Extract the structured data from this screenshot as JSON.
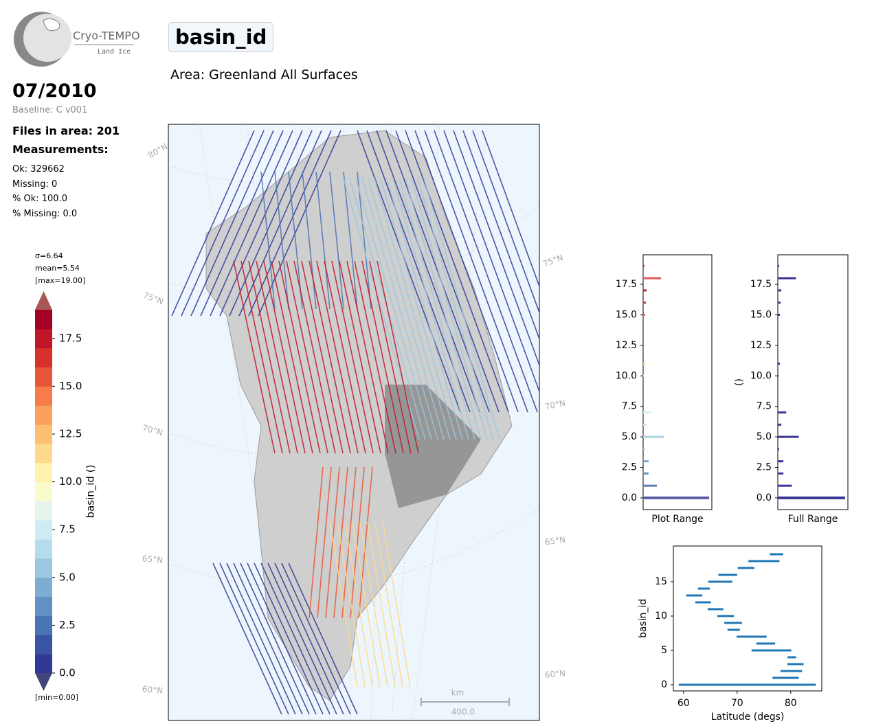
{
  "header": {
    "logo_title": "Cryo-TEMPO",
    "logo_subtitle": "Land Ice",
    "title": "basin_id",
    "area": "Area: Greenland All Surfaces",
    "date": "07/2010",
    "baseline": "Baseline: C v001",
    "files": "Files in area: 201",
    "measurements": "Measurements:",
    "stats": [
      "Ok: 329662",
      "Missing: 0",
      "% Ok: 100.0",
      "% Missing: 0.0"
    ]
  },
  "map": {
    "lat_labels_left": [
      "80°N",
      "75°N",
      "70°N",
      "65°N",
      "60°N"
    ],
    "lat_labels_right": [
      "75°N",
      "70°N",
      "65°N",
      "60°N"
    ],
    "scale_unit": "km",
    "scale_length": "400.0"
  },
  "chart_data": [
    {
      "type": "colorbar",
      "annotations": [
        "σ=6.64",
        "mean=5.54",
        "[max=19.00]",
        "[min=0.00]"
      ],
      "ylabel": "basin_id ()",
      "ylim": [
        0,
        19
      ],
      "yticks": [
        {
          "value": 0,
          "label": "0.0"
        },
        2.5,
        {
          "value": 5,
          "label": "5.0"
        },
        7.5,
        {
          "value": 10,
          "label": "10.0"
        },
        12.5,
        {
          "value": 15,
          "label": "15.0"
        },
        17.5
      ],
      "colors": [
        "#323896",
        "#3a54a4",
        "#4a74b4",
        "#6090c4",
        "#7eacd2",
        "#9ac8e0",
        "#b5dced",
        "#cfebf3",
        "#e6f5ec",
        "#f8fccd",
        "#fff2ac",
        "#fed98b",
        "#fdbf71",
        "#fca05d",
        "#f67d4a",
        "#e95538",
        "#d6312a",
        "#bf1727",
        "#a50026"
      ],
      "extend_colors": [
        "#45457d",
        "#a85754"
      ]
    },
    {
      "type": "hbar-hist",
      "xlabel": "Plot Range",
      "categories": [
        0,
        1,
        2,
        3,
        4,
        5,
        6,
        7,
        8,
        9,
        10,
        11,
        12,
        13,
        14,
        15,
        16,
        17,
        18,
        19
      ],
      "values": [
        96,
        20,
        8,
        8,
        2,
        30,
        5,
        12,
        0,
        0,
        1,
        3,
        0,
        0,
        0,
        3,
        4,
        5,
        26,
        2
      ],
      "colors": [
        "#5b5ea6",
        "#5d7cb5",
        "#6f8fc2",
        "#7ea3cc",
        "#95b9d8",
        "#a9d4e2",
        "#c3e3ec",
        "#d9eff0",
        "#eef8e0",
        "#fbfbc9",
        "#fff0a8",
        "#fedb8c",
        "#fdc174",
        "#fca35f",
        "#f6824d",
        "#ea5a3b",
        "#d93a2e",
        "#c2202a",
        "#e05a60",
        "#c83038"
      ],
      "xlim": [
        0,
        100
      ],
      "ylim": [
        -0.96,
        19.92
      ],
      "yticks": [
        {
          "value": 0,
          "label": "0.0"
        },
        2.5,
        {
          "value": 5,
          "label": "5.0"
        },
        7.5,
        {
          "value": 10,
          "label": "10.0"
        },
        12.5,
        {
          "value": 15,
          "label": "15.0"
        },
        17.5
      ]
    },
    {
      "type": "hbar-hist",
      "xlabel": "Full Range",
      "ylabel": "()",
      "categories": [
        0,
        1,
        2,
        3,
        4,
        5,
        6,
        7,
        8,
        9,
        10,
        11,
        12,
        13,
        14,
        15,
        16,
        17,
        18,
        19
      ],
      "values": [
        96,
        20,
        8,
        8,
        2,
        30,
        5,
        12,
        0,
        0,
        1,
        3,
        0,
        0,
        0,
        3,
        4,
        5,
        26,
        2
      ],
      "color": "#3b3594",
      "xlim": [
        0,
        100
      ],
      "ylim": [
        -0.96,
        19.92
      ],
      "yticks": [
        {
          "value": 0,
          "label": "0.0"
        },
        2.5,
        {
          "value": 5,
          "label": "5.0"
        },
        7.5,
        {
          "value": 10,
          "label": "10.0"
        },
        12.5,
        {
          "value": 15,
          "label": "15.0"
        },
        17.5
      ]
    },
    {
      "type": "range",
      "xlabel": "Latitude (degs)",
      "ylabel": "basin_id",
      "categories": [
        0,
        1,
        2,
        3,
        4,
        5,
        6,
        7,
        8,
        9,
        10,
        11,
        12,
        13,
        14,
        15,
        16,
        17,
        18,
        19
      ],
      "start": [
        59.1,
        76.6,
        78.1,
        79.4,
        79.4,
        72.7,
        73.6,
        69.9,
        68.2,
        67.6,
        66.3,
        64.5,
        62.2,
        60.5,
        62.7,
        64.6,
        66.5,
        70.1,
        72.1,
        76.1
      ],
      "end": [
        84.7,
        81.5,
        82.1,
        82.4,
        81.0,
        80.1,
        77.1,
        75.5,
        70.5,
        70.9,
        69.4,
        67.4,
        65.1,
        63.5,
        64.9,
        69.1,
        70.0,
        73.2,
        77.9,
        78.6
      ],
      "color": "#1f77b4",
      "xlim": [
        58.1,
        85.8
      ],
      "xticks": [
        60,
        70,
        80
      ],
      "ylim": [
        -0.9,
        20.2
      ],
      "yticks": [
        0,
        5,
        10,
        15
      ]
    }
  ]
}
